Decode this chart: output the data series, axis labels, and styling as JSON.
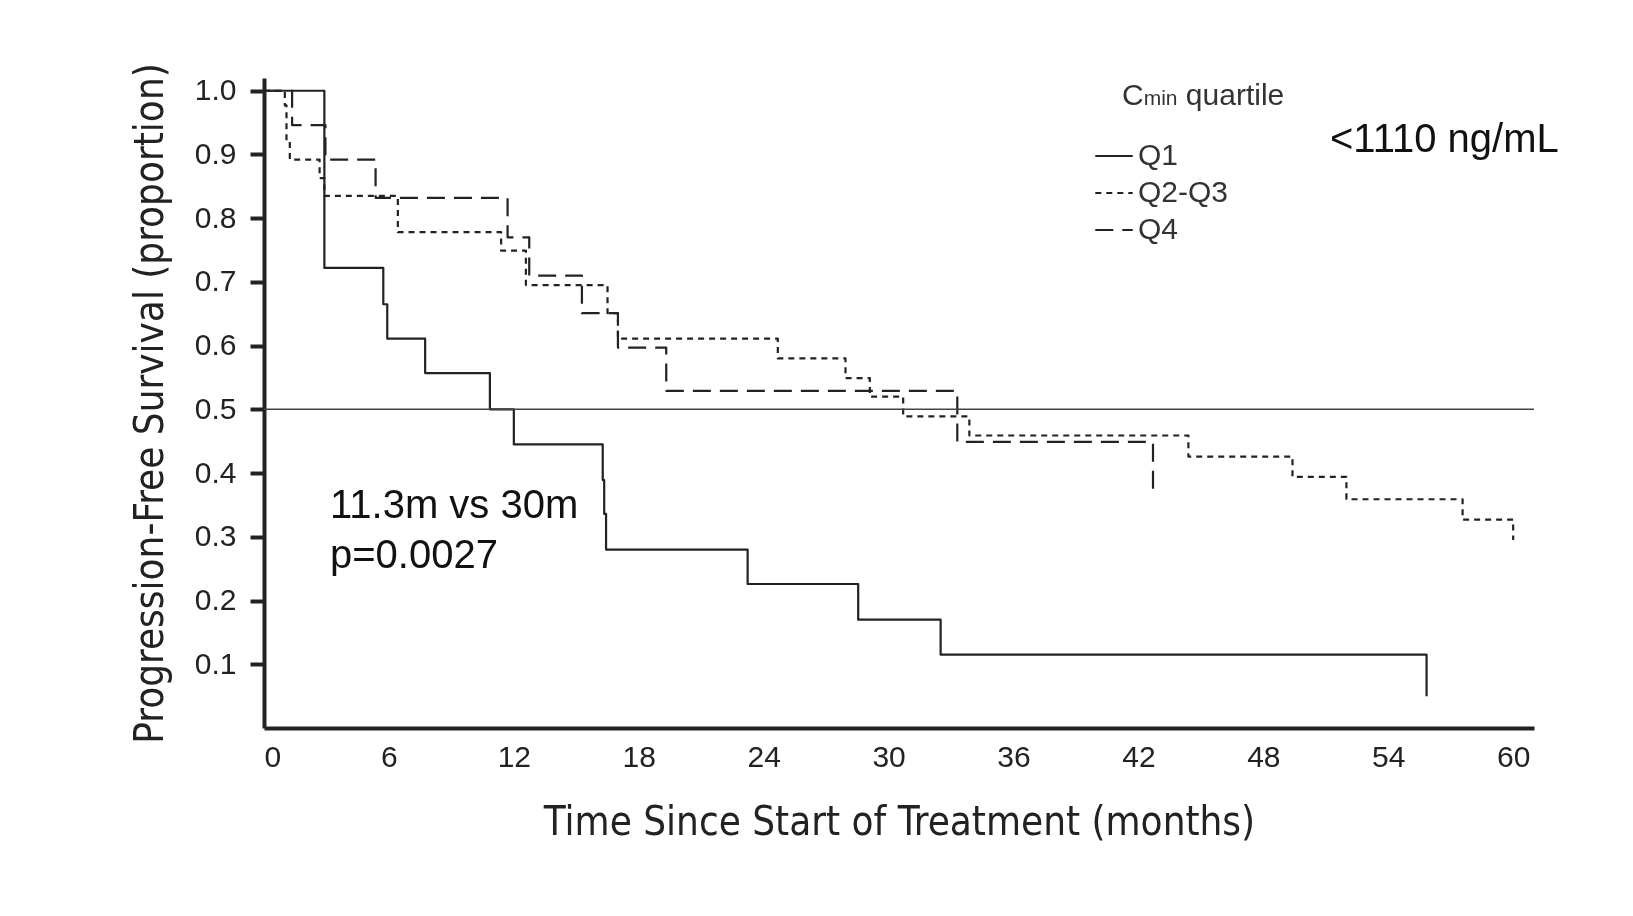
{
  "chart_data": {
    "type": "step",
    "xlabel": "Time Since Start of Treatment (months)",
    "ylabel": "Progression-Free Survival (proportion)",
    "legend_title": "C$_{min}$ quartile",
    "legend": "top right",
    "xlim": [
      0,
      61
    ],
    "xticks": [
      0,
      6,
      12,
      18,
      24,
      30,
      36,
      42,
      48,
      54,
      60
    ],
    "ylim": [
      0,
      1.02
    ],
    "yticks": [
      0.1,
      0.2,
      0.3,
      0.4,
      0.5,
      0.6,
      0.7,
      0.8,
      0.9,
      {
        "value": 1,
        "label": "1.0"
      }
    ],
    "grid": false,
    "series": [
      {
        "name": "Q1",
        "color": "#222222",
        "line_style": "solid",
        "x": [
          0,
          2.9,
          5.73,
          5.92,
          7.74,
          10.85,
          12.0,
          16.27,
          16.34,
          16.43,
          23.23,
          28.54,
          32.5,
          55.84
        ],
        "values": [
          1.0,
          0.722,
          0.665,
          0.611,
          0.557,
          0.5,
          0.445,
          0.389,
          0.336,
          0.28,
          0.226,
          0.17,
          0.115,
          0.05
        ]
      },
      {
        "name": "Q2-Q3",
        "color": "#222222",
        "line_style": "dotted",
        "x": [
          0,
          1.0,
          1.08,
          1.24,
          2.67,
          2.9,
          6.43,
          11.39,
          12.58,
          16.5,
          17.0,
          24.68,
          27.93,
          29.1,
          30.7,
          33.88,
          44.4,
          49.4,
          51.99,
          57.57,
          60.0
        ],
        "values": [
          1.0,
          0.977,
          0.92,
          0.892,
          0.863,
          0.835,
          0.778,
          0.749,
          0.695,
          0.651,
          0.611,
          0.58,
          0.549,
          0.52,
          0.489,
          0.459,
          0.426,
          0.394,
          0.359,
          0.327,
          0.295
        ]
      },
      {
        "name": "Q4",
        "color": "#222222",
        "line_style": "dashed",
        "x": [
          0,
          1.35,
          2.95,
          5.36,
          11.7,
          12.74,
          15.27,
          17.0,
          19.32,
          33.3,
          42.7
        ],
        "values": [
          1.0,
          0.946,
          0.892,
          0.832,
          0.77,
          0.71,
          0.651,
          0.597,
          0.529,
          0.449,
          0.374
        ]
      }
    ],
    "ref_lines": [
      {
        "axis": "y",
        "value": 0.5,
        "color": "#444444"
      }
    ],
    "annotations": [
      "<1110 ng/mL",
      "11.3m vs 30m",
      "p=0.0027"
    ]
  }
}
